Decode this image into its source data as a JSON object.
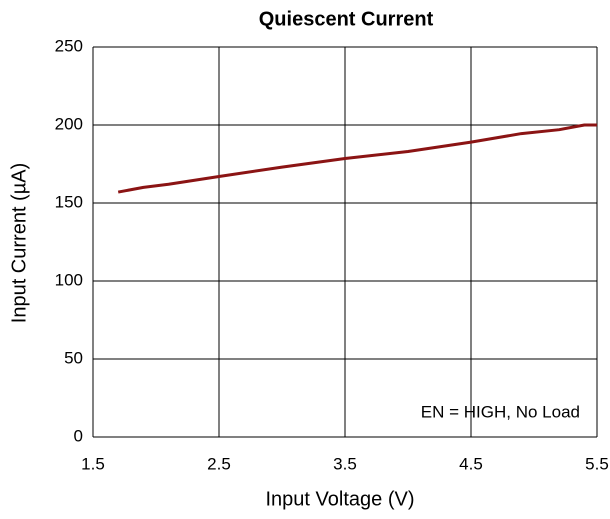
{
  "chart_data": {
    "type": "line",
    "title": "Quiescent Current",
    "x_label": "Input Voltage (V)",
    "y_label": "Input Current (µA)",
    "annotation": "EN = HIGH, No Load",
    "x": [
      1.7,
      1.9,
      2.1,
      2.5,
      3.0,
      3.5,
      4.0,
      4.5,
      4.9,
      5.2,
      5.4,
      5.5
    ],
    "series": [
      {
        "name": "Input Current",
        "color": "#8b1414",
        "values": [
          157,
          160,
          162,
          167,
          173,
          178.5,
          183,
          189,
          194.5,
          197,
          200,
          200
        ]
      }
    ],
    "xlim": [
      1.5,
      5.5
    ],
    "xticks": [
      1.5,
      2.5,
      3.5,
      4.5,
      5.5
    ],
    "ylim": [
      0,
      250
    ],
    "yticks": [
      0,
      50,
      100,
      150,
      200,
      250
    ],
    "grid": true
  }
}
